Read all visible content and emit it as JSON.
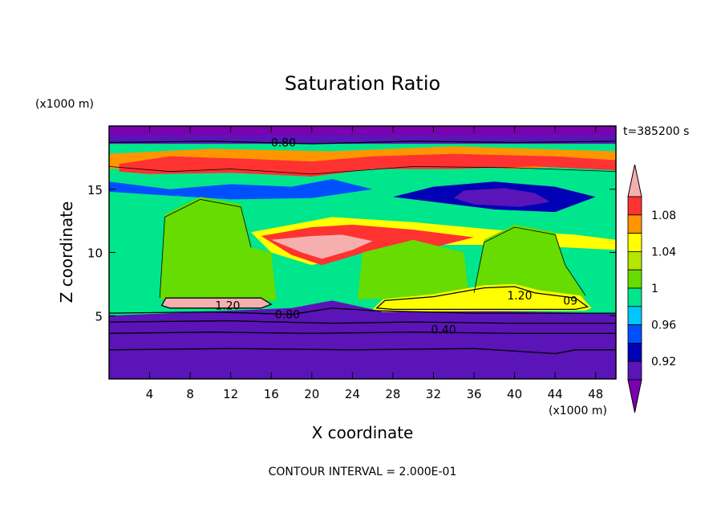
{
  "chart_data": {
    "type": "heatmap",
    "title": "Saturation Ratio",
    "xlabel": "X coordinate",
    "ylabel": "Z coordinate",
    "x_unit": "(x1000 m)",
    "y_unit": "(x1000 m)",
    "time_label": "t=385200 s",
    "footer": "CONTOUR INTERVAL = 2.000E-01",
    "xlim": [
      0,
      50
    ],
    "ylim": [
      0,
      20
    ],
    "x_ticks": [
      4,
      8,
      12,
      16,
      20,
      24,
      28,
      32,
      36,
      40,
      44,
      48
    ],
    "y_ticks": [
      5,
      10,
      15
    ],
    "colorbar": {
      "labels": [
        "0.92",
        "0.96",
        "1",
        "1.04",
        "1.08"
      ],
      "bands": [
        {
          "lo": null,
          "hi": 0.9,
          "color": "#7a00b0"
        },
        {
          "lo": 0.9,
          "hi": 0.92,
          "color": "#5a14b8"
        },
        {
          "lo": 0.92,
          "hi": 0.94,
          "color": "#0000b4"
        },
        {
          "lo": 0.94,
          "hi": 0.96,
          "color": "#0050ff"
        },
        {
          "lo": 0.96,
          "hi": 0.98,
          "color": "#00c8ff"
        },
        {
          "lo": 0.98,
          "hi": 1.0,
          "color": "#00e68c"
        },
        {
          "lo": 1.0,
          "hi": 1.02,
          "color": "#66dc00"
        },
        {
          "lo": 1.02,
          "hi": 1.04,
          "color": "#b4e600"
        },
        {
          "lo": 1.04,
          "hi": 1.06,
          "color": "#ffff00"
        },
        {
          "lo": 1.06,
          "hi": 1.08,
          "color": "#ff9600"
        },
        {
          "lo": 1.08,
          "hi": 1.1,
          "color": "#ff3232"
        },
        {
          "lo": 1.1,
          "hi": null,
          "color": "#f5afaf"
        }
      ]
    },
    "contour_labels": [
      {
        "text": "0.80",
        "x": 17.2,
        "y": 18.7
      },
      {
        "text": "1.20",
        "x": 11.7,
        "y": 5.8
      },
      {
        "text": "0.80",
        "x": 17.6,
        "y": 5.1
      },
      {
        "text": "0.40",
        "x": 33.0,
        "y": 3.9
      },
      {
        "text": "1.20",
        "x": 40.5,
        "y": 6.6
      },
      {
        "text": "09",
        "x": 45.5,
        "y": 6.2
      }
    ],
    "regions": [
      {
        "name": "background",
        "value": 0.99,
        "points": [
          [
            0,
            4.8
          ],
          [
            50,
            4.8
          ],
          [
            50,
            19.8
          ],
          [
            0,
            19.8
          ]
        ]
      },
      {
        "name": "low-layer",
        "value": 0.91,
        "points": [
          [
            0,
            0
          ],
          [
            50,
            0
          ],
          [
            50,
            5.2
          ],
          [
            26,
            5.5
          ],
          [
            22,
            6.2
          ],
          [
            18,
            5.6
          ],
          [
            0,
            5.0
          ]
        ]
      },
      {
        "name": "upper-top-band",
        "value": 0.91,
        "points": [
          [
            0,
            18.6
          ],
          [
            50,
            18.6
          ],
          [
            50,
            20
          ],
          [
            0,
            20
          ]
        ]
      },
      {
        "name": "upper-top-band2",
        "value": 0.85,
        "points": [
          [
            0,
            19.3
          ],
          [
            50,
            19.3
          ],
          [
            50,
            20
          ],
          [
            0,
            20
          ]
        ]
      },
      {
        "name": "upper-moist",
        "value": 1.07,
        "points": [
          [
            0,
            17.8
          ],
          [
            10,
            18.2
          ],
          [
            22,
            18.0
          ],
          [
            34,
            18.4
          ],
          [
            50,
            18.0
          ],
          [
            50,
            17.0
          ],
          [
            40,
            16.6
          ],
          [
            30,
            17.0
          ],
          [
            20,
            16.4
          ],
          [
            10,
            16.8
          ],
          [
            0,
            16.6
          ]
        ]
      },
      {
        "name": "upper-orange",
        "value": 1.09,
        "points": [
          [
            1,
            17.0
          ],
          [
            6,
            17.6
          ],
          [
            14,
            17.4
          ],
          [
            20,
            17.2
          ],
          [
            26,
            17.6
          ],
          [
            34,
            17.8
          ],
          [
            44,
            17.6
          ],
          [
            50,
            17.3
          ],
          [
            50,
            16.5
          ],
          [
            42,
            16.8
          ],
          [
            34,
            16.6
          ],
          [
            26,
            16.6
          ],
          [
            20,
            16.0
          ],
          [
            12,
            16.3
          ],
          [
            4,
            16.2
          ],
          [
            1,
            16.4
          ]
        ]
      },
      {
        "name": "blue-band-left",
        "value": 0.95,
        "points": [
          [
            0,
            15.6
          ],
          [
            6,
            15.0
          ],
          [
            12,
            15.4
          ],
          [
            18,
            15.2
          ],
          [
            22,
            15.8
          ],
          [
            26,
            15.0
          ],
          [
            20,
            14.3
          ],
          [
            12,
            14.2
          ],
          [
            4,
            14.6
          ],
          [
            0,
            14.8
          ]
        ]
      },
      {
        "name": "dry-patch-right",
        "value": 0.93,
        "points": [
          [
            32,
            15.2
          ],
          [
            38,
            15.6
          ],
          [
            44,
            15.2
          ],
          [
            48,
            14.4
          ],
          [
            44,
            13.2
          ],
          [
            38,
            13.4
          ],
          [
            32,
            14.0
          ],
          [
            28,
            14.4
          ]
        ]
      },
      {
        "name": "dry-patch-core",
        "value": 0.91,
        "points": [
          [
            35,
            14.9
          ],
          [
            39,
            15.1
          ],
          [
            42,
            14.7
          ],
          [
            43.5,
            14.0
          ],
          [
            40.5,
            13.6
          ],
          [
            36,
            13.8
          ],
          [
            34,
            14.3
          ]
        ]
      },
      {
        "name": "mid-moist-band",
        "value": 1.05,
        "points": [
          [
            14,
            11.6
          ],
          [
            22,
            12.8
          ],
          [
            30,
            12.4
          ],
          [
            38,
            11.8
          ],
          [
            46,
            11.4
          ],
          [
            50,
            11.0
          ],
          [
            50,
            10.2
          ],
          [
            40,
            10.6
          ],
          [
            30,
            10.6
          ],
          [
            24,
            9.8
          ],
          [
            20,
            9.0
          ],
          [
            16,
            10.0
          ]
        ]
      },
      {
        "name": "mid-red-core",
        "value": 1.09,
        "points": [
          [
            15,
            11.3
          ],
          [
            20,
            12.0
          ],
          [
            24,
            12.2
          ],
          [
            30,
            11.8
          ],
          [
            36,
            11.2
          ],
          [
            32,
            10.4
          ],
          [
            26,
            10.2
          ],
          [
            21,
            9.0
          ],
          [
            18,
            9.8
          ]
        ]
      },
      {
        "name": "mid-pink-core",
        "value": 1.12,
        "points": [
          [
            16,
            11.0
          ],
          [
            20,
            11.3
          ],
          [
            23,
            11.4
          ],
          [
            26,
            10.9
          ],
          [
            24,
            10.2
          ],
          [
            21,
            9.5
          ],
          [
            19,
            10.0
          ]
        ]
      },
      {
        "name": "green-plume-left",
        "value": 1.01,
        "points": [
          [
            5,
            6.3
          ],
          [
            5.5,
            13.0
          ],
          [
            9,
            14.4
          ],
          [
            13,
            13.8
          ],
          [
            14,
            10.4
          ],
          [
            16,
            10.0
          ],
          [
            16.5,
            6.2
          ]
        ]
      },
      {
        "name": "green-plume-right",
        "value": 1.01,
        "points": [
          [
            36,
            6.6
          ],
          [
            37,
            11.0
          ],
          [
            40,
            12.2
          ],
          [
            44,
            11.6
          ],
          [
            45,
            9.0
          ],
          [
            47,
            6.4
          ]
        ]
      },
      {
        "name": "green-plume-mid",
        "value": 1.01,
        "points": [
          [
            24.5,
            6.3
          ],
          [
            25,
            10.0
          ],
          [
            30,
            11.0
          ],
          [
            35,
            10.0
          ],
          [
            35.5,
            6.5
          ]
        ]
      },
      {
        "name": "lower-cloud-left",
        "value": 1.13,
        "points": [
          [
            5.2,
            5.8
          ],
          [
            5.6,
            6.4
          ],
          [
            15,
            6.4
          ],
          [
            16.0,
            5.9
          ],
          [
            15,
            5.6
          ],
          [
            6,
            5.6
          ]
        ]
      },
      {
        "name": "lower-cloud-right",
        "value": 1.13,
        "points": [
          [
            26.4,
            5.6
          ],
          [
            27.2,
            6.2
          ],
          [
            32,
            6.5
          ],
          [
            37,
            7.2
          ],
          [
            40,
            7.3
          ],
          [
            42,
            6.8
          ],
          [
            46,
            6.4
          ],
          [
            47.2,
            5.7
          ],
          [
            46,
            5.5
          ],
          [
            28,
            5.5
          ]
        ]
      },
      {
        "name": "lower-edge-yellow",
        "value": 1.05,
        "points": [
          [
            26.0,
            5.5
          ],
          [
            27.0,
            6.3
          ],
          [
            32,
            6.7
          ],
          [
            37,
            7.4
          ],
          [
            40,
            7.5
          ],
          [
            42.5,
            7.0
          ],
          [
            46.5,
            6.6
          ],
          [
            47.6,
            5.6
          ],
          [
            47,
            5.4
          ],
          [
            27,
            5.3
          ]
        ]
      }
    ],
    "contours": [
      {
        "level": 0.8,
        "label": "0.80",
        "points": [
          [
            0,
            18.7
          ],
          [
            10,
            18.8
          ],
          [
            20,
            18.6
          ],
          [
            30,
            18.8
          ],
          [
            40,
            18.7
          ],
          [
            50,
            18.8
          ]
        ]
      },
      {
        "level": 0.8,
        "points": [
          [
            0,
            5.2
          ],
          [
            10,
            5.3
          ],
          [
            18,
            5.1
          ],
          [
            22,
            5.6
          ],
          [
            26,
            5.4
          ],
          [
            36,
            5.2
          ],
          [
            50,
            5.2
          ]
        ]
      },
      {
        "level": 0.6,
        "points": [
          [
            0,
            4.5
          ],
          [
            12,
            4.6
          ],
          [
            22,
            4.4
          ],
          [
            30,
            4.5
          ],
          [
            40,
            4.4
          ],
          [
            50,
            4.4
          ]
        ]
      },
      {
        "level": 0.4,
        "label": "0.40",
        "points": [
          [
            0,
            3.6
          ],
          [
            10,
            3.7
          ],
          [
            20,
            3.6
          ],
          [
            30,
            3.7
          ],
          [
            40,
            3.6
          ],
          [
            50,
            3.6
          ]
        ]
      },
      {
        "level": 0.2,
        "points": [
          [
            0,
            2.3
          ],
          [
            12,
            2.4
          ],
          [
            24,
            2.3
          ],
          [
            36,
            2.4
          ],
          [
            44,
            2.0
          ],
          [
            46,
            2.3
          ],
          [
            50,
            2.3
          ]
        ]
      },
      {
        "level": 1.2,
        "closed": true,
        "points": [
          [
            5.2,
            5.8
          ],
          [
            5.6,
            6.4
          ],
          [
            15,
            6.4
          ],
          [
            16.0,
            5.9
          ],
          [
            15,
            5.6
          ],
          [
            6,
            5.6
          ]
        ]
      },
      {
        "level": 1.2,
        "closed": true,
        "points": [
          [
            26.4,
            5.6
          ],
          [
            27.2,
            6.2
          ],
          [
            32,
            6.5
          ],
          [
            37,
            7.2
          ],
          [
            40,
            7.3
          ],
          [
            42,
            6.8
          ],
          [
            46,
            6.4
          ],
          [
            47.2,
            5.7
          ],
          [
            46,
            5.5
          ],
          [
            28,
            5.5
          ]
        ]
      },
      {
        "level": 1.0,
        "points": [
          [
            0,
            16.8
          ],
          [
            6,
            16.4
          ],
          [
            12,
            16.6
          ],
          [
            20,
            16.2
          ],
          [
            30,
            16.8
          ],
          [
            40,
            16.7
          ],
          [
            50,
            16.4
          ]
        ]
      },
      {
        "level": 1.0,
        "points": [
          [
            5,
            6.4
          ],
          [
            5.5,
            12.8
          ],
          [
            9,
            14.2
          ],
          [
            13,
            13.6
          ],
          [
            14,
            10.4
          ]
        ]
      },
      {
        "level": 1.0,
        "points": [
          [
            36,
            6.8
          ],
          [
            37,
            10.8
          ],
          [
            40,
            12.0
          ],
          [
            44,
            11.4
          ],
          [
            45,
            9.0
          ],
          [
            47,
            6.6
          ]
        ]
      }
    ]
  }
}
